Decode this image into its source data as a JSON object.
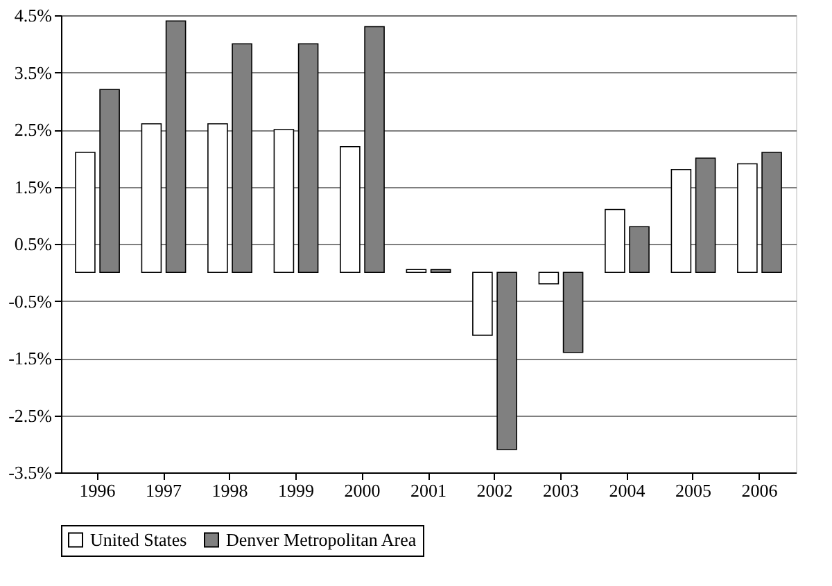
{
  "chart_data": {
    "type": "bar",
    "categories": [
      "1996",
      "1997",
      "1998",
      "1999",
      "2000",
      "2001",
      "2002",
      "2003",
      "2004",
      "2005",
      "2006"
    ],
    "series": [
      {
        "name": "United States",
        "color": "#ffffff",
        "values": [
          2.1,
          2.6,
          2.6,
          2.5,
          2.2,
          0.05,
          -1.1,
          -0.2,
          1.1,
          1.8,
          1.9
        ]
      },
      {
        "name": "Denver Metropolitan Area",
        "color": "#808080",
        "values": [
          3.2,
          4.4,
          4.0,
          4.0,
          4.3,
          0.05,
          -3.1,
          -1.4,
          0.8,
          2.0,
          2.1
        ]
      }
    ],
    "ylim": [
      -3.5,
      4.5
    ],
    "yticks": [
      {
        "value": -3.5,
        "label": "-3.5%"
      },
      {
        "value": -2.5,
        "label": "-2.5%"
      },
      {
        "value": -1.5,
        "label": "-1.5%"
      },
      {
        "value": -0.5,
        "label": "-0.5%"
      },
      {
        "value": 0.5,
        "label": "0.5%"
      },
      {
        "value": 1.5,
        "label": "1.5%"
      },
      {
        "value": 2.5,
        "label": "2.5%"
      },
      {
        "value": 3.5,
        "label": "3.5%"
      },
      {
        "value": 4.5,
        "label": "4.5%"
      }
    ],
    "grid": "y",
    "legend": "bottom"
  }
}
